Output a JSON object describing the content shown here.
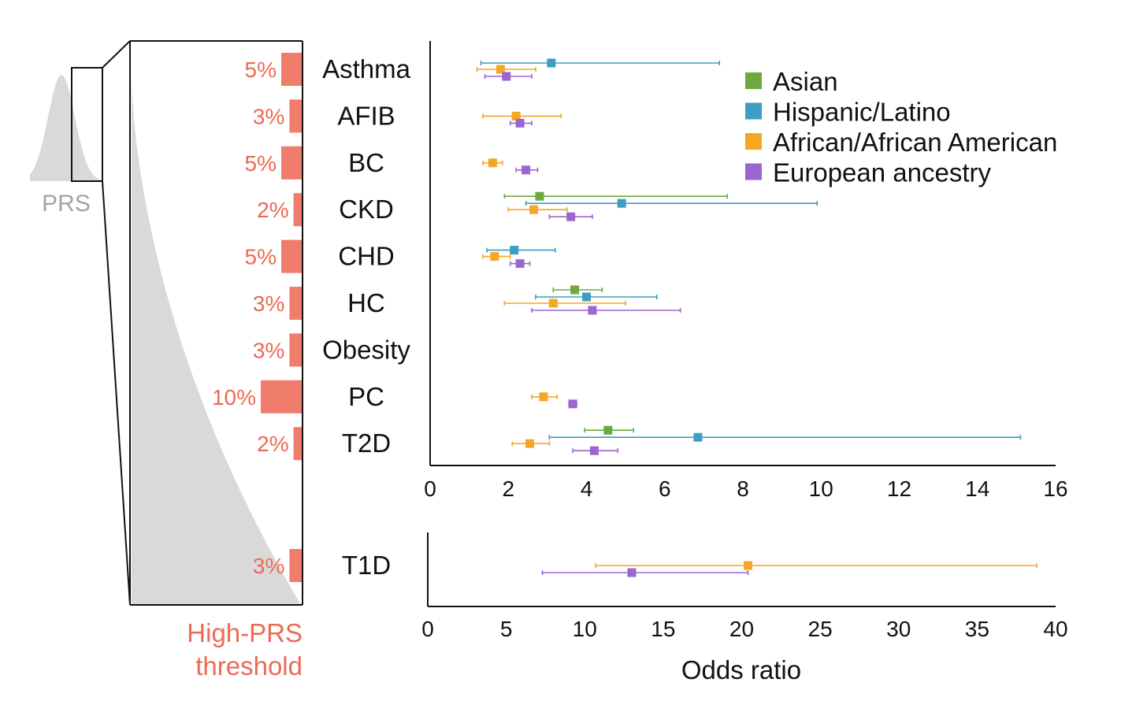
{
  "prs_label": "PRS",
  "threshold_title": [
    "High-PRS",
    "threshold"
  ],
  "colors": {
    "Asian": "#6aaa3f",
    "Hispanic/Latino": "#3d9dc2",
    "African/African American": "#f5a623",
    "European ancestry": "#9b66cf",
    "threshold_bar": "#f07c6b",
    "curve": "#d9d9d9"
  },
  "chart_data": [
    {
      "type": "scatter",
      "subtype": "forest-plot",
      "title": "",
      "xlabel": "",
      "ylabel": "",
      "xlim": [
        0,
        16
      ],
      "xticks": [
        0,
        2,
        4,
        6,
        8,
        10,
        12,
        14,
        16
      ],
      "legend_position": "top-right",
      "grid": false,
      "legend": [
        "Asian",
        "Hispanic/Latino",
        "African/African American",
        "European ancestry"
      ],
      "categories": [
        {
          "label": "Asthma",
          "threshold": "5%",
          "threshold_value": 5,
          "points": [
            {
              "series": "Hispanic/Latino",
              "or": 3.1,
              "lo": 1.3,
              "hi": 7.4
            },
            {
              "series": "African/African American",
              "or": 1.8,
              "lo": 1.2,
              "hi": 2.7
            },
            {
              "series": "European ancestry",
              "or": 1.95,
              "lo": 1.4,
              "hi": 2.6
            }
          ]
        },
        {
          "label": "AFIB",
          "threshold": "3%",
          "threshold_value": 3,
          "points": [
            {
              "series": "African/African American",
              "or": 2.2,
              "lo": 1.35,
              "hi": 3.35
            },
            {
              "series": "European ancestry",
              "or": 2.3,
              "lo": 2.05,
              "hi": 2.6
            }
          ]
        },
        {
          "label": "BC",
          "threshold": "5%",
          "threshold_value": 5,
          "points": [
            {
              "series": "African/African American",
              "or": 1.6,
              "lo": 1.35,
              "hi": 1.85
            },
            {
              "series": "European ancestry",
              "or": 2.45,
              "lo": 2.2,
              "hi": 2.75
            }
          ]
        },
        {
          "label": "CKD",
          "threshold": "2%",
          "threshold_value": 2,
          "points": [
            {
              "series": "Asian",
              "or": 2.8,
              "lo": 1.9,
              "hi": 7.6
            },
            {
              "series": "Hispanic/Latino",
              "or": 4.9,
              "lo": 2.45,
              "hi": 9.9
            },
            {
              "series": "African/African American",
              "or": 2.65,
              "lo": 2.0,
              "hi": 3.5
            },
            {
              "series": "European ancestry",
              "or": 3.6,
              "lo": 3.05,
              "hi": 4.15
            }
          ]
        },
        {
          "label": "CHD",
          "threshold": "5%",
          "threshold_value": 5,
          "points": [
            {
              "series": "Hispanic/Latino",
              "or": 2.15,
              "lo": 1.45,
              "hi": 3.2
            },
            {
              "series": "African/African American",
              "or": 1.65,
              "lo": 1.35,
              "hi": 2.05
            },
            {
              "series": "European ancestry",
              "or": 2.3,
              "lo": 2.05,
              "hi": 2.55
            }
          ]
        },
        {
          "label": "HC",
          "threshold": "3%",
          "threshold_value": 3,
          "points": [
            {
              "series": "Asian",
              "or": 3.7,
              "lo": 3.15,
              "hi": 4.4
            },
            {
              "series": "Hispanic/Latino",
              "or": 4.0,
              "lo": 2.7,
              "hi": 5.8
            },
            {
              "series": "African/African American",
              "or": 3.15,
              "lo": 1.9,
              "hi": 5.0
            },
            {
              "series": "European ancestry",
              "or": 4.15,
              "lo": 2.6,
              "hi": 6.4
            }
          ]
        },
        {
          "label": "Obesity",
          "threshold": "3%",
          "threshold_value": 3,
          "points": []
        },
        {
          "label": "PC",
          "threshold": "10%",
          "threshold_value": 10,
          "points": [
            {
              "series": "African/African American",
              "or": 2.9,
              "lo": 2.6,
              "hi": 3.25
            },
            {
              "series": "European ancestry",
              "or": 3.65,
              "lo": 3.55,
              "hi": 3.75
            }
          ]
        },
        {
          "label": "T2D",
          "threshold": "2%",
          "threshold_value": 2,
          "points": [
            {
              "series": "Asian",
              "or": 4.55,
              "lo": 3.95,
              "hi": 5.2
            },
            {
              "series": "Hispanic/Latino",
              "or": 6.85,
              "lo": 3.05,
              "hi": 15.1
            },
            {
              "series": "African/African American",
              "or": 2.55,
              "lo": 2.1,
              "hi": 3.05
            },
            {
              "series": "European ancestry",
              "or": 4.2,
              "lo": 3.65,
              "hi": 4.8
            }
          ]
        }
      ]
    },
    {
      "type": "scatter",
      "subtype": "forest-plot",
      "title": "",
      "xlabel": "Odds ratio",
      "ylabel": "",
      "xlim": [
        0,
        40
      ],
      "xticks": [
        0,
        5,
        10,
        15,
        20,
        25,
        30,
        35,
        40
      ],
      "grid": false,
      "categories": [
        {
          "label": "T1D",
          "threshold": "3%",
          "threshold_value": 3,
          "points": [
            {
              "series": "African/African American",
              "or": 20.4,
              "lo": 10.7,
              "hi": 38.8
            },
            {
              "series": "European ancestry",
              "or": 13.0,
              "lo": 7.3,
              "hi": 20.4
            }
          ]
        }
      ]
    }
  ]
}
